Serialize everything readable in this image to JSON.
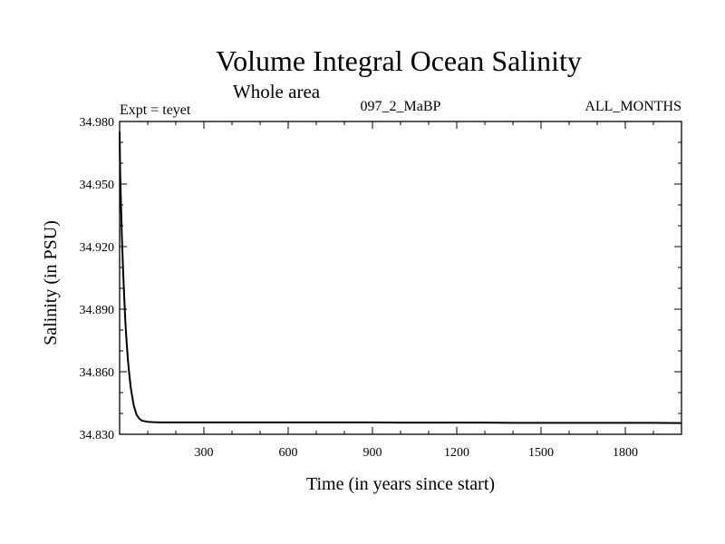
{
  "chart_data": {
    "type": "line",
    "title": "Volume Integral Ocean Salinity",
    "subtitle": "Whole area",
    "experiment": "Expt = teyet",
    "run_id": "097_2_MaBP",
    "period": "ALL_MONTHS",
    "xlabel": "Time (in years since start)",
    "ylabel": "Salinity (in PSU)",
    "xlim": [
      0,
      2000
    ],
    "ylim": [
      34.83,
      34.98
    ],
    "x_ticks": [
      300,
      600,
      900,
      1200,
      1500,
      1800
    ],
    "x_tick_labels": [
      "300",
      "600",
      "900",
      "1200",
      "1500",
      "1800"
    ],
    "y_ticks": [
      34.83,
      34.86,
      34.89,
      34.92,
      34.95,
      34.98
    ],
    "y_tick_labels": [
      "34.830",
      "34.860",
      "34.890",
      "34.920",
      "34.950",
      "34.980"
    ],
    "grid": false,
    "series": [
      {
        "name": "Salinity",
        "x": [
          0,
          2,
          5,
          8,
          12,
          16,
          20,
          25,
          30,
          35,
          40,
          50,
          60,
          70,
          80,
          100,
          120,
          150,
          200,
          300,
          400,
          500,
          600,
          700,
          800,
          900,
          1000,
          1100,
          1200,
          1300,
          1400,
          1500,
          1600,
          1700,
          1800,
          1900,
          2000
        ],
        "values": [
          34.975,
          34.955,
          34.94,
          34.925,
          34.91,
          34.897,
          34.885,
          34.874,
          34.865,
          34.858,
          34.852,
          34.844,
          34.8395,
          34.8375,
          34.8365,
          34.836,
          34.8358,
          34.8357,
          34.8357,
          34.8357,
          34.8357,
          34.8357,
          34.8357,
          34.8357,
          34.8357,
          34.8357,
          34.8356,
          34.8356,
          34.8356,
          34.8356,
          34.8355,
          34.8355,
          34.8355,
          34.8355,
          34.8355,
          34.8355,
          34.8354
        ]
      }
    ]
  }
}
